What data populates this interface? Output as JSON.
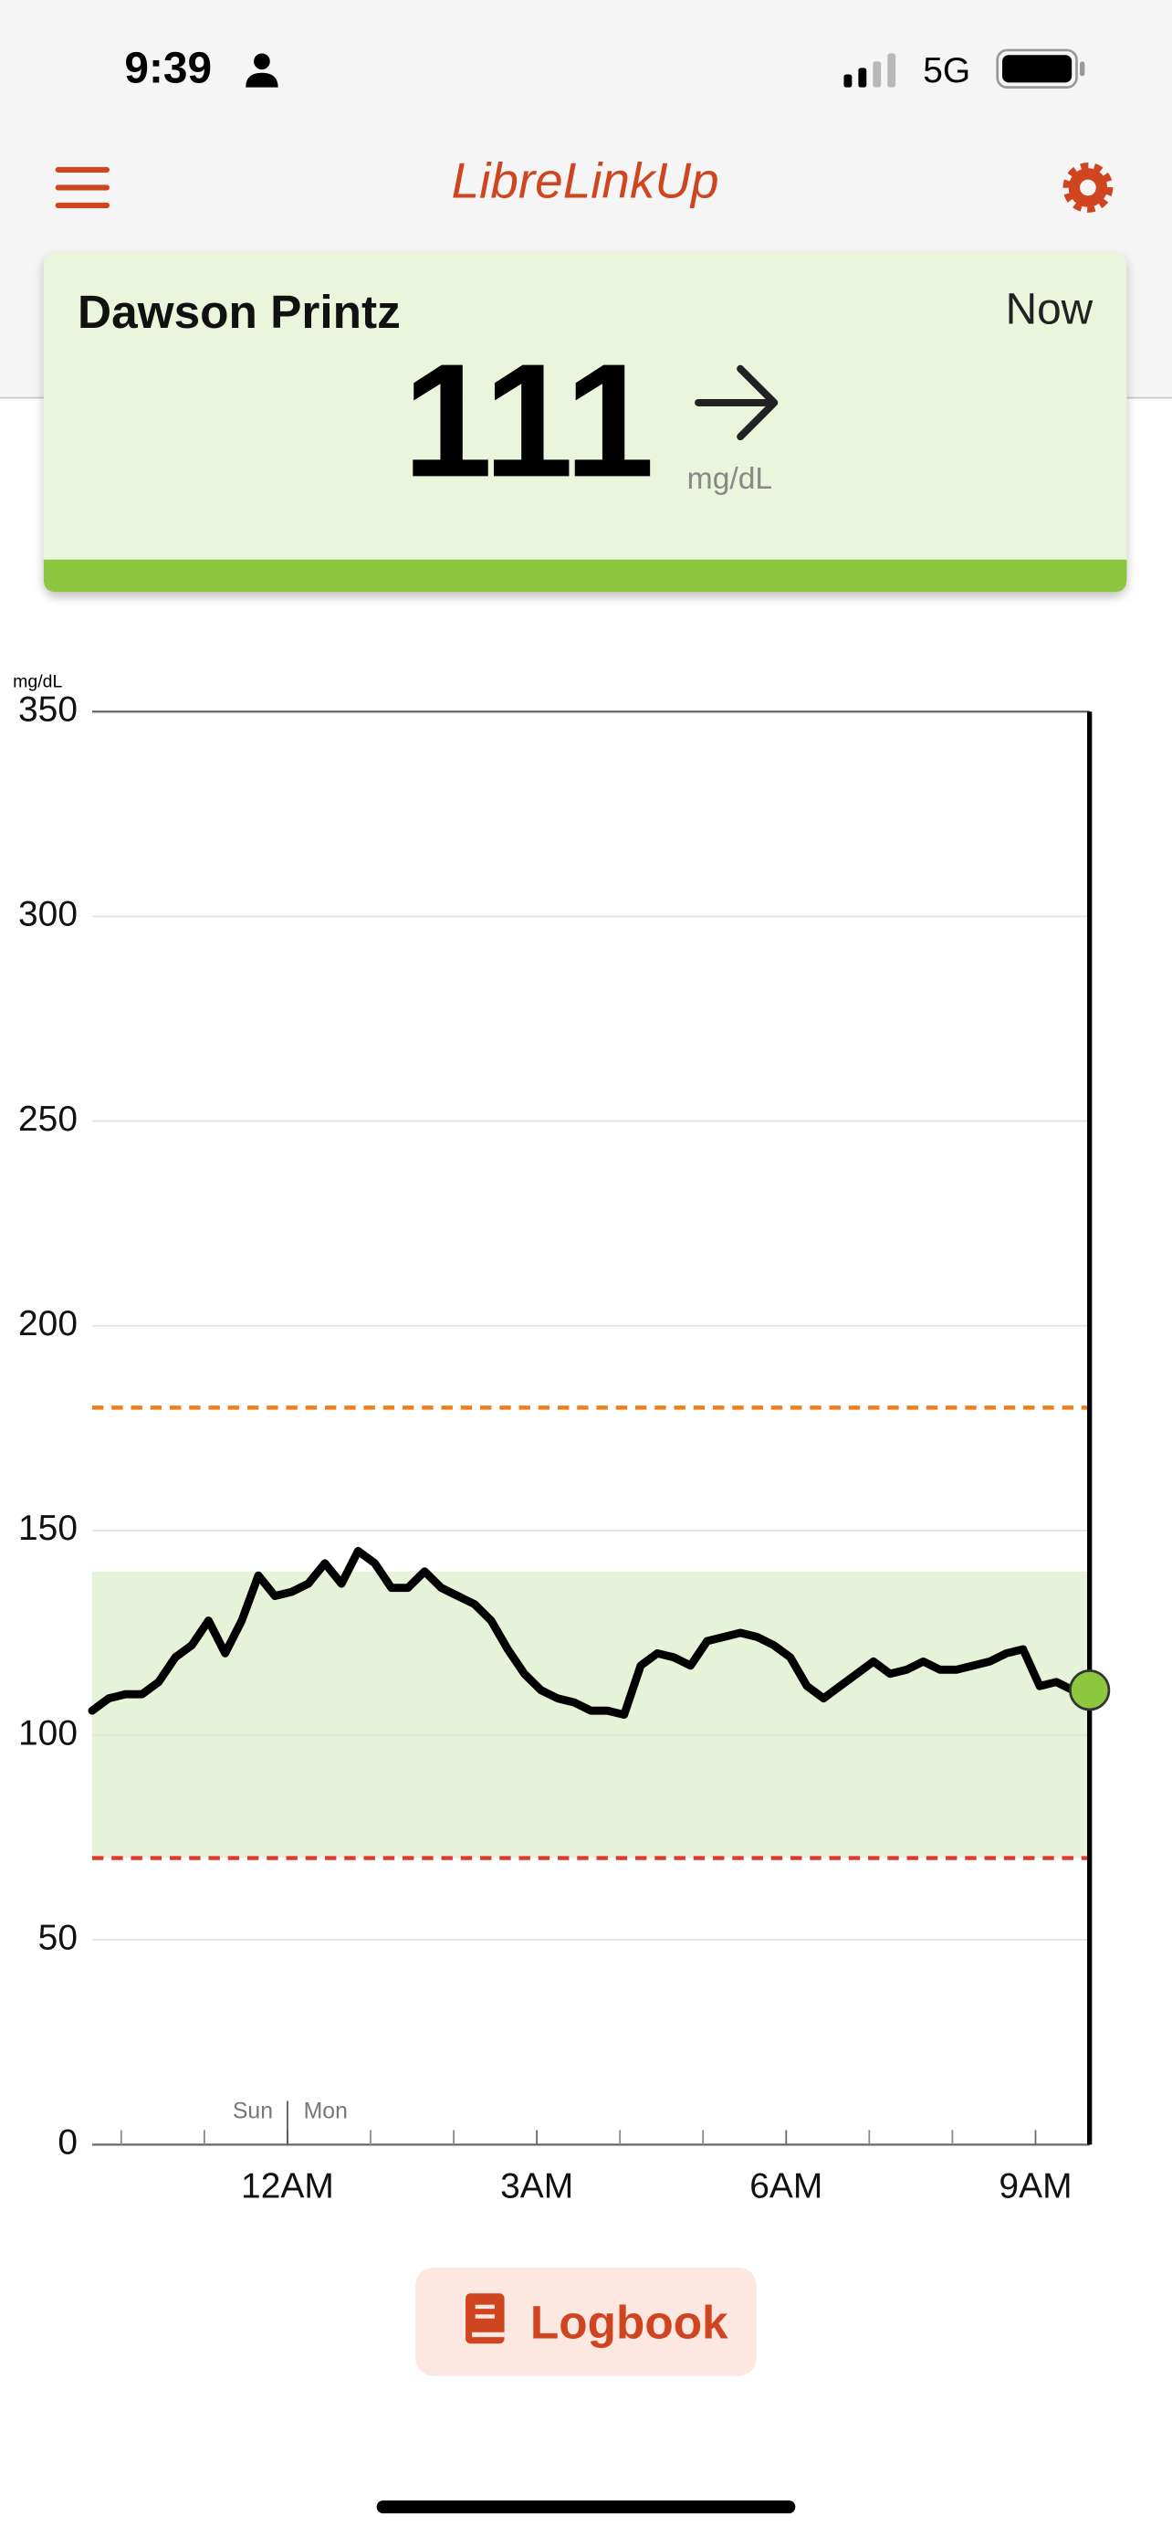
{
  "status_bar": {
    "time": "9:39",
    "network": "5G"
  },
  "header": {
    "title": "LibreLinkUp"
  },
  "card": {
    "name": "Dawson Printz",
    "timestamp": "Now",
    "reading": 111,
    "unit": "mg/dL"
  },
  "chart_data": {
    "type": "line",
    "y_unit": "mg/dL",
    "ylim": [
      0,
      350
    ],
    "yticks": [
      0,
      50,
      100,
      150,
      200,
      250,
      300,
      350
    ],
    "xlim": [
      -2.35,
      9.65
    ],
    "xticks": [
      {
        "value": 0,
        "label": "12AM"
      },
      {
        "value": 3,
        "label": "3AM"
      },
      {
        "value": 6,
        "label": "6AM"
      },
      {
        "value": 9,
        "label": "9AM"
      }
    ],
    "xminorticks": [
      -2,
      -1,
      1,
      2,
      4,
      5,
      7,
      8
    ],
    "day_divider": {
      "value": 0,
      "labels": [
        "Sun",
        "Mon"
      ]
    },
    "target_range": [
      70,
      140
    ],
    "target_color": "#e6f3d9",
    "high_line": 180,
    "high_color": "#f07e1a",
    "low_line": 70,
    "low_color": "#e0382c",
    "current_color": "#8dc63f",
    "grid": true,
    "x": [
      -2.35,
      -2.15,
      -1.95,
      -1.75,
      -1.55,
      -1.35,
      -1.15,
      -0.95,
      -0.75,
      -0.55,
      -0.35,
      -0.15,
      0.05,
      0.25,
      0.45,
      0.65,
      0.85,
      1.05,
      1.25,
      1.45,
      1.65,
      1.85,
      2.05,
      2.25,
      2.45,
      2.65,
      2.85,
      3.05,
      3.25,
      3.45,
      3.65,
      3.85,
      4.05,
      4.25,
      4.45,
      4.65,
      4.85,
      5.05,
      5.25,
      5.45,
      5.65,
      5.85,
      6.05,
      6.25,
      6.45,
      6.65,
      6.85,
      7.05,
      7.25,
      7.45,
      7.65,
      7.85,
      8.05,
      8.25,
      8.45,
      8.65,
      8.85,
      9.05,
      9.25,
      9.45,
      9.65
    ],
    "series": [
      {
        "color": "#000000",
        "values": [
          106,
          109,
          110,
          110,
          113,
          119,
          122,
          128,
          120,
          128,
          139,
          134,
          135,
          137,
          142,
          137,
          145,
          142,
          136,
          136,
          140,
          136,
          134,
          132,
          128,
          121,
          115,
          111,
          109,
          108,
          106,
          106,
          105,
          117,
          120,
          119,
          117,
          123,
          124,
          125,
          124,
          122,
          119,
          112,
          109,
          112,
          115,
          118,
          115,
          116,
          118,
          116,
          116,
          117,
          118,
          120,
          121,
          112,
          113,
          111,
          111
        ]
      }
    ]
  },
  "button": {
    "label": "Logbook"
  }
}
